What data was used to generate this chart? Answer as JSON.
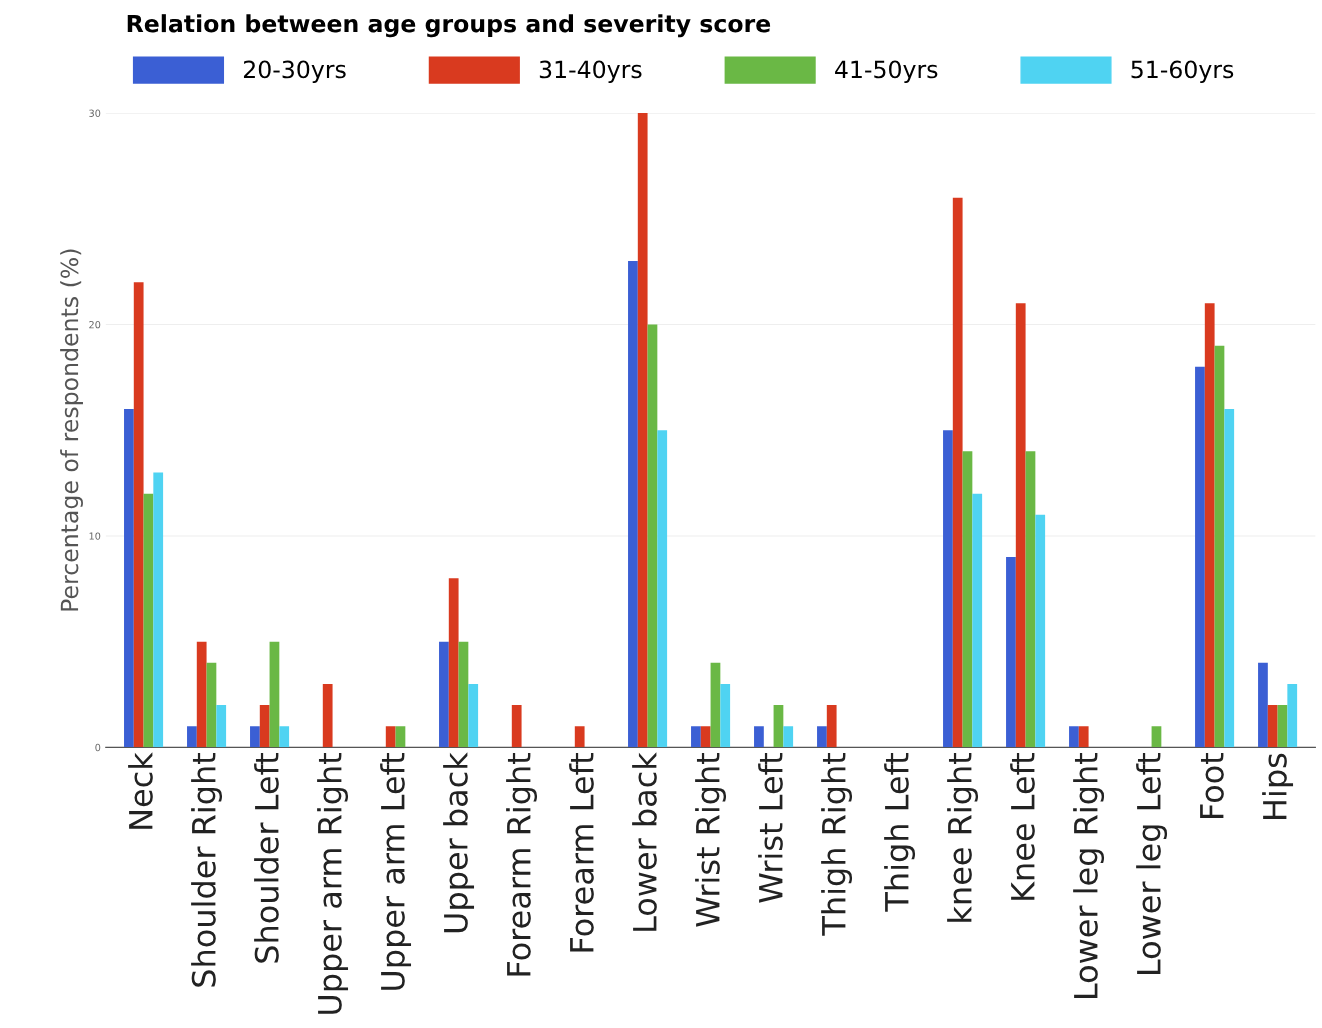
{
  "chart_data": {
    "type": "bar",
    "title": "Relation between age groups and severity score",
    "ylabel": "Percentage of respondents (%)",
    "categories": [
      "Neck",
      "Shoulder Right",
      "Shoulder Left",
      "Upper arm Right",
      "Upper arm Left",
      "Upper back",
      "Forearm Right",
      "Forearm Left",
      "Lower back",
      "Wrist Right",
      "Wrist Left",
      "Thigh Right",
      "Thigh Left",
      "knee Right",
      "Knee Left",
      "Lower leg Right",
      "Lower leg Left",
      "Foot",
      "Hips"
    ],
    "series": [
      {
        "name": "20-30yrs",
        "color": "#3b5fd4",
        "values": [
          16,
          1,
          1,
          0,
          0,
          5,
          0,
          0,
          23,
          1,
          1,
          1,
          0,
          15,
          9,
          1,
          0,
          18,
          4
        ]
      },
      {
        "name": "31-40yrs",
        "color": "#d93a1f",
        "values": [
          22,
          5,
          2,
          3,
          1,
          8,
          2,
          1,
          30,
          1,
          0,
          2,
          0,
          26,
          21,
          1,
          0,
          21,
          2
        ]
      },
      {
        "name": "41-50yrs",
        "color": "#6ab845",
        "values": [
          12,
          4,
          5,
          0,
          1,
          5,
          0,
          0,
          20,
          4,
          2,
          0,
          0,
          14,
          14,
          0,
          1,
          19,
          2
        ]
      },
      {
        "name": "51-60yrs",
        "color": "#4fd3f2",
        "values": [
          13,
          2,
          1,
          0,
          0,
          3,
          0,
          0,
          15,
          3,
          1,
          0,
          0,
          12,
          11,
          0,
          0,
          16,
          3
        ]
      }
    ],
    "ylim": [
      0,
      30
    ],
    "yticks": [
      0,
      10,
      20,
      30
    ],
    "grid": "y",
    "legend": "top left"
  }
}
